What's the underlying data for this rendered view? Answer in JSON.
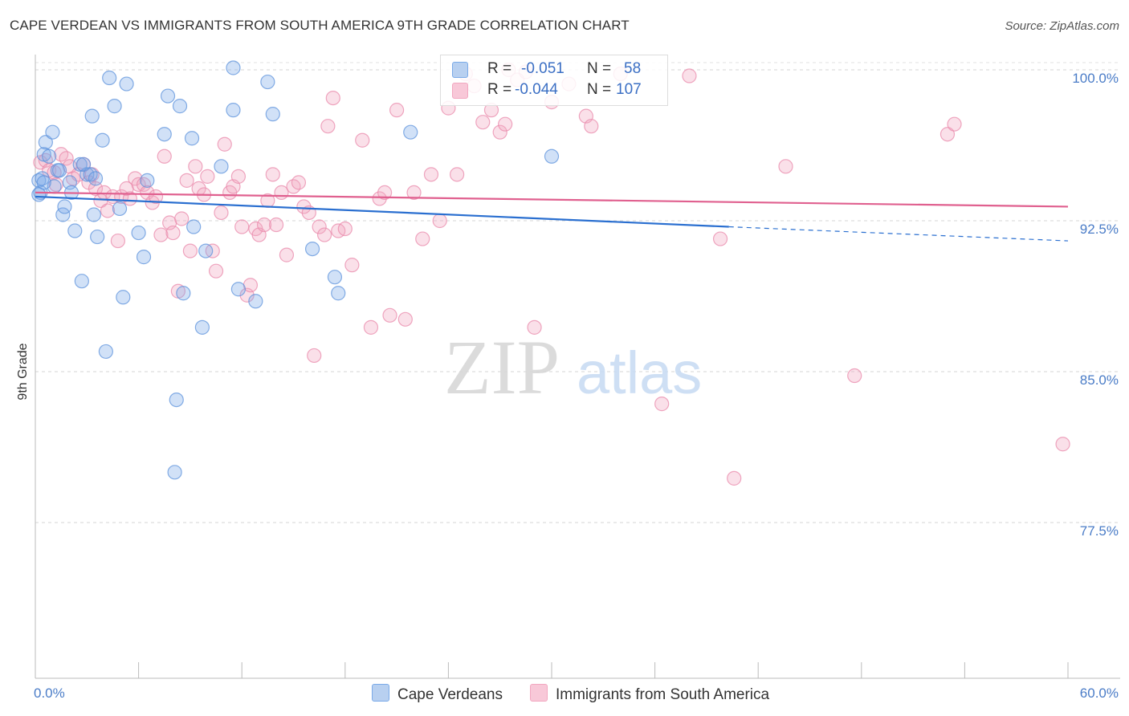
{
  "title": "CAPE VERDEAN VS IMMIGRANTS FROM SOUTH AMERICA 9TH GRADE CORRELATION CHART",
  "source": "Source: ZipAtlas.com",
  "watermark": {
    "zip": "ZIP",
    "atlas": "atlas"
  },
  "legend_top": {
    "rows": [
      {
        "r_label": "R =",
        "r_value": "-0.051",
        "n_label": "N =",
        "n_value": "58"
      },
      {
        "r_label": "R =",
        "r_value": "-0.044",
        "n_label": "N =",
        "n_value": "107"
      }
    ]
  },
  "legend_bottom": {
    "items": [
      {
        "label": "Cape Verdeans"
      },
      {
        "label": "Immigrants from South America"
      }
    ]
  },
  "chart_data": {
    "type": "scatter",
    "title": "CAPE VERDEAN VS IMMIGRANTS FROM SOUTH AMERICA 9TH GRADE CORRELATION CHART",
    "xlabel": "",
    "ylabel": "9th Grade",
    "xlim": [
      0,
      60
    ],
    "ylim": [
      70,
      101.5
    ],
    "x_tick_labels": [
      "0.0%",
      "60.0%"
    ],
    "y_ticks": [
      77.5,
      85.0,
      92.5,
      100.0
    ],
    "y_tick_labels": [
      "77.5%",
      "85.0%",
      "92.5%",
      "100.0%"
    ],
    "colors": {
      "blue": "#7aaae8",
      "blue_line": "#2a6fd0",
      "pink": "#f2a7c0",
      "pink_line": "#e0608f"
    },
    "series": [
      {
        "name": "Cape Verdeans",
        "r": -0.051,
        "n": 58,
        "trend": {
          "x0": 0,
          "y0": 93.7,
          "x1": 40.3,
          "y1": 92.2,
          "dash_x1": 60,
          "dash_y1": 91.5
        },
        "points": [
          [
            0.2,
            94.5
          ],
          [
            0.3,
            93.9
          ],
          [
            0.5,
            95.8
          ],
          [
            0.6,
            96.4
          ],
          [
            1.0,
            96.9
          ],
          [
            1.1,
            94.2
          ],
          [
            1.3,
            95.0
          ],
          [
            1.6,
            92.8
          ],
          [
            1.7,
            93.2
          ],
          [
            2.0,
            94.4
          ],
          [
            2.1,
            93.9
          ],
          [
            2.3,
            92.0
          ],
          [
            2.6,
            95.3
          ],
          [
            2.7,
            89.5
          ],
          [
            3.0,
            94.8
          ],
          [
            3.3,
            97.7
          ],
          [
            3.4,
            92.8
          ],
          [
            3.6,
            91.7
          ],
          [
            3.9,
            96.5
          ],
          [
            4.1,
            86.0
          ],
          [
            4.3,
            99.6
          ],
          [
            4.6,
            98.2
          ],
          [
            4.9,
            93.1
          ],
          [
            5.1,
            88.7
          ],
          [
            5.3,
            99.3
          ],
          [
            6.0,
            91.9
          ],
          [
            6.3,
            90.7
          ],
          [
            6.5,
            94.5
          ],
          [
            7.5,
            96.8
          ],
          [
            7.7,
            98.7
          ],
          [
            8.1,
            80.0
          ],
          [
            8.2,
            83.6
          ],
          [
            8.4,
            98.2
          ],
          [
            8.6,
            88.9
          ],
          [
            9.1,
            96.6
          ],
          [
            9.2,
            92.2
          ],
          [
            9.7,
            87.2
          ],
          [
            9.9,
            91.0
          ],
          [
            10.8,
            95.2
          ],
          [
            11.5,
            98.0
          ],
          [
            11.5,
            100.1
          ],
          [
            11.8,
            89.1
          ],
          [
            12.8,
            88.5
          ],
          [
            13.5,
            99.4
          ],
          [
            13.8,
            97.8
          ],
          [
            16.1,
            91.1
          ],
          [
            17.4,
            89.7
          ],
          [
            17.6,
            88.9
          ],
          [
            21.8,
            96.9
          ],
          [
            30.0,
            95.7
          ],
          [
            0.4,
            94.6
          ],
          [
            0.8,
            95.7
          ],
          [
            1.4,
            95.0
          ],
          [
            2.8,
            95.3
          ],
          [
            3.2,
            94.8
          ],
          [
            3.5,
            94.6
          ],
          [
            0.2,
            93.8
          ],
          [
            0.5,
            94.4
          ]
        ]
      },
      {
        "name": "Immigrants from South America",
        "r": -0.044,
        "n": 107,
        "trend": {
          "x0": 0,
          "y0": 93.9,
          "x1": 60,
          "y1": 93.2
        },
        "points": [
          [
            0.3,
            95.4
          ],
          [
            0.6,
            95.5
          ],
          [
            0.8,
            95.0
          ],
          [
            1.1,
            94.9
          ],
          [
            1.2,
            94.3
          ],
          [
            1.5,
            95.8
          ],
          [
            1.8,
            95.6
          ],
          [
            2.0,
            95.2
          ],
          [
            2.2,
            94.6
          ],
          [
            2.5,
            94.8
          ],
          [
            2.8,
            95.3
          ],
          [
            3.1,
            94.4
          ],
          [
            3.3,
            94.8
          ],
          [
            3.5,
            94.1
          ],
          [
            3.8,
            93.5
          ],
          [
            4.0,
            93.9
          ],
          [
            4.2,
            93.0
          ],
          [
            4.5,
            93.7
          ],
          [
            4.8,
            91.5
          ],
          [
            5.0,
            93.7
          ],
          [
            5.3,
            94.1
          ],
          [
            5.5,
            93.6
          ],
          [
            5.8,
            94.6
          ],
          [
            6.0,
            94.3
          ],
          [
            6.3,
            94.3
          ],
          [
            6.5,
            93.9
          ],
          [
            6.8,
            93.4
          ],
          [
            7.0,
            93.7
          ],
          [
            7.3,
            91.8
          ],
          [
            7.5,
            95.7
          ],
          [
            7.8,
            92.4
          ],
          [
            8.0,
            91.9
          ],
          [
            8.3,
            89.0
          ],
          [
            8.5,
            92.6
          ],
          [
            8.8,
            94.5
          ],
          [
            9.0,
            91.0
          ],
          [
            9.3,
            95.2
          ],
          [
            9.5,
            94.1
          ],
          [
            9.8,
            93.8
          ],
          [
            10.0,
            94.7
          ],
          [
            10.3,
            91.0
          ],
          [
            10.5,
            90.0
          ],
          [
            10.8,
            92.9
          ],
          [
            11.0,
            96.3
          ],
          [
            11.3,
            93.9
          ],
          [
            11.5,
            94.2
          ],
          [
            11.8,
            94.7
          ],
          [
            12.0,
            92.2
          ],
          [
            12.3,
            88.8
          ],
          [
            12.5,
            89.3
          ],
          [
            12.8,
            92.1
          ],
          [
            13.0,
            91.8
          ],
          [
            13.3,
            92.3
          ],
          [
            13.5,
            93.5
          ],
          [
            13.8,
            94.8
          ],
          [
            14.0,
            92.3
          ],
          [
            14.3,
            93.9
          ],
          [
            14.6,
            90.8
          ],
          [
            15.0,
            94.2
          ],
          [
            15.3,
            94.4
          ],
          [
            15.6,
            93.2
          ],
          [
            15.9,
            92.9
          ],
          [
            16.2,
            85.8
          ],
          [
            16.5,
            92.2
          ],
          [
            16.8,
            91.8
          ],
          [
            17.0,
            97.2
          ],
          [
            17.3,
            98.6
          ],
          [
            17.6,
            92.0
          ],
          [
            18.0,
            92.1
          ],
          [
            18.4,
            90.3
          ],
          [
            19.0,
            96.5
          ],
          [
            19.5,
            87.2
          ],
          [
            20.0,
            93.6
          ],
          [
            20.3,
            93.9
          ],
          [
            20.6,
            87.8
          ],
          [
            21.0,
            98.0
          ],
          [
            21.5,
            87.6
          ],
          [
            22.0,
            93.9
          ],
          [
            22.5,
            91.6
          ],
          [
            23.0,
            94.8
          ],
          [
            23.5,
            92.5
          ],
          [
            24.0,
            98.1
          ],
          [
            24.5,
            94.8
          ],
          [
            25.0,
            99.8
          ],
          [
            25.5,
            99.2
          ],
          [
            26.0,
            97.4
          ],
          [
            26.5,
            98.0
          ],
          [
            27.0,
            96.9
          ],
          [
            27.3,
            97.3
          ],
          [
            27.5,
            100.0
          ],
          [
            28.0,
            99.5
          ],
          [
            28.5,
            99.9
          ],
          [
            29.0,
            87.2
          ],
          [
            30.0,
            98.4
          ],
          [
            31.0,
            99.3
          ],
          [
            32.0,
            97.7
          ],
          [
            32.3,
            97.2
          ],
          [
            34.0,
            99.8
          ],
          [
            36.4,
            83.4
          ],
          [
            38.0,
            99.7
          ],
          [
            39.8,
            91.6
          ],
          [
            40.6,
            79.7
          ],
          [
            43.6,
            95.2
          ],
          [
            47.6,
            84.8
          ],
          [
            53.0,
            96.8
          ],
          [
            53.4,
            97.3
          ],
          [
            59.7,
            81.4
          ]
        ]
      }
    ]
  }
}
